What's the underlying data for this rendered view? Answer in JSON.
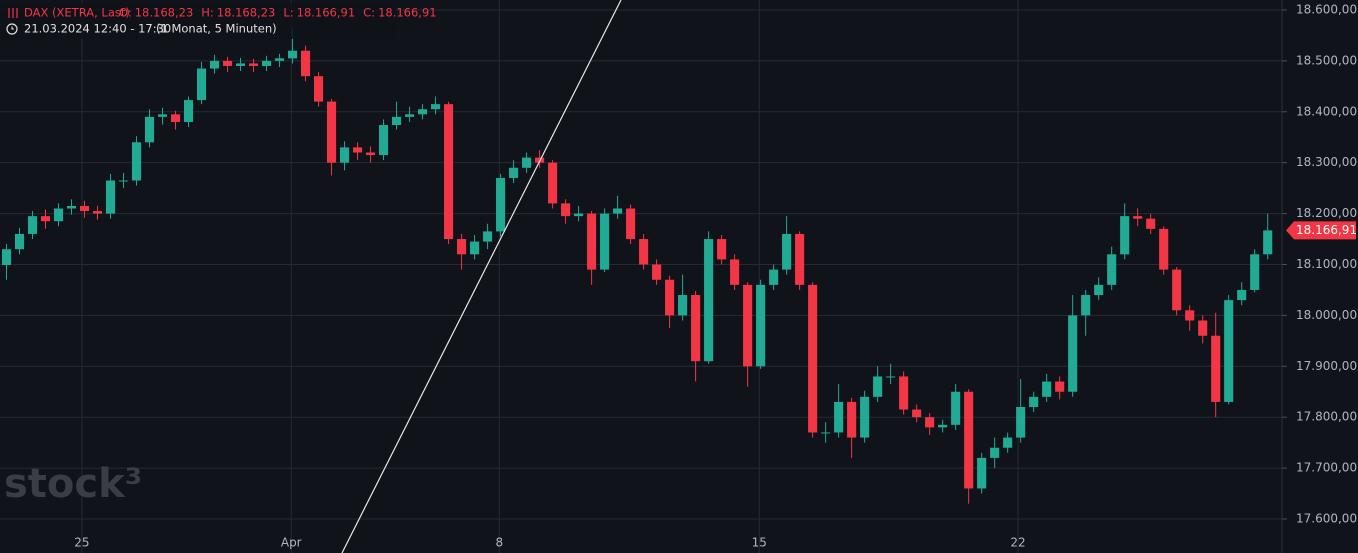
{
  "chart_data": {
    "type": "candlestick",
    "title": "DAX (XETRA, Last)",
    "ohlc_header": [
      {
        "label": "O:",
        "value": "18.168,23"
      },
      {
        "label": "H:",
        "value": "18.168,23"
      },
      {
        "label": "L:",
        "value": "18.166,91"
      },
      {
        "label": "C:",
        "value": "18.166,91"
      }
    ],
    "subtitle": "21.03.2024 12:40 - 17:30",
    "interval": "(1 Monat, 5 Minuten)",
    "watermark": "stock³",
    "up_color": "#22ab94",
    "down_color": "#f23645",
    "grid": true,
    "ylim": [
      17533.2,
      18619.6
    ],
    "xlim": [
      0,
      98.6
    ],
    "yticks": [
      {
        "value": 18600,
        "label": "18.600,00"
      },
      {
        "value": 18500,
        "label": "18.500,00"
      },
      {
        "value": 18400,
        "label": "18.400,00"
      },
      {
        "value": 18300,
        "label": "18.300,00"
      },
      {
        "value": 18200,
        "label": "18.200,00"
      },
      {
        "value": 18100,
        "label": "18.100,00"
      },
      {
        "value": 18000,
        "label": "18.000,00"
      },
      {
        "value": 17900,
        "label": "17.900,00"
      },
      {
        "value": 17800,
        "label": "17.800,00"
      },
      {
        "value": 17700,
        "label": "17.700,00"
      },
      {
        "value": 17600,
        "label": "17.600,00"
      }
    ],
    "xticks": [
      {
        "value": 6.3,
        "label": "25"
      },
      {
        "value": 22.4,
        "label": "Apr"
      },
      {
        "value": 38.4,
        "label": "8"
      },
      {
        "value": 58.4,
        "label": "15"
      },
      {
        "value": 78.3,
        "label": "22"
      }
    ],
    "last_price": {
      "value": 18166.91,
      "label": "18.166,91"
    },
    "series": {
      "open": [
        18099,
        18130,
        18160,
        18195,
        18185,
        18210,
        18215,
        18205,
        18200,
        18265,
        18265,
        18340,
        18390,
        18395,
        18380,
        18423,
        18485,
        18500,
        18490,
        18495,
        18490,
        18500,
        18505,
        18520,
        18470,
        18420,
        18300,
        18330,
        18320,
        18315,
        18374,
        18390,
        18395,
        18405,
        18415,
        18150,
        18120,
        18145,
        18165,
        18270,
        18290,
        18310,
        18300,
        18220,
        18195,
        18200,
        18090,
        18200,
        18210,
        18150,
        18100,
        18070,
        18000,
        18040,
        17910,
        18150,
        18110,
        18060,
        17900,
        18060,
        18090,
        18160,
        18060,
        17770,
        17770,
        17830,
        17760,
        17840,
        17880,
        17880,
        17815,
        17800,
        17780,
        17785,
        17850,
        17660,
        17720,
        17740,
        17760,
        17820,
        17840,
        17870,
        17850,
        18000,
        18040,
        18060,
        18120,
        18195,
        18190,
        18170,
        18090,
        18010,
        17990,
        17960,
        17830,
        18030,
        18050,
        18120
      ],
      "high": [
        18140,
        18172,
        18205,
        18208,
        18220,
        18228,
        18225,
        18215,
        18278,
        18280,
        18352,
        18405,
        18408,
        18402,
        18430,
        18498,
        18512,
        18508,
        18506,
        18504,
        18510,
        18514,
        18565,
        18530,
        18478,
        18425,
        18342,
        18340,
        18332,
        18385,
        18420,
        18410,
        18415,
        18430,
        18420,
        18160,
        18158,
        18180,
        18278,
        18305,
        18320,
        18325,
        18305,
        18228,
        18215,
        18205,
        18210,
        18235,
        18218,
        18160,
        18110,
        18078,
        18080,
        18048,
        18165,
        18158,
        18120,
        18065,
        18070,
        18100,
        18195,
        18165,
        18065,
        17790,
        17865,
        17838,
        17852,
        17900,
        17905,
        17890,
        17825,
        17808,
        17795,
        17865,
        17855,
        17730,
        17760,
        17770,
        17875,
        17850,
        17885,
        17880,
        18040,
        18050,
        18075,
        18135,
        18220,
        18210,
        18200,
        18175,
        18095,
        18020,
        18000,
        18005,
        18040,
        18065,
        18130,
        18200
      ],
      "low": [
        18070,
        18120,
        18150,
        18170,
        18175,
        18198,
        18192,
        18188,
        18190,
        18250,
        18255,
        18330,
        18375,
        18365,
        18370,
        18415,
        18475,
        18478,
        18480,
        18478,
        18480,
        18488,
        18495,
        18460,
        18410,
        18275,
        18285,
        18305,
        18300,
        18305,
        18365,
        18380,
        18385,
        18395,
        18140,
        18090,
        18110,
        18130,
        18155,
        18260,
        18280,
        18290,
        18210,
        18180,
        18185,
        18060,
        18085,
        18190,
        18140,
        18090,
        18060,
        17975,
        17990,
        17870,
        17905,
        18100,
        18050,
        17860,
        17895,
        18050,
        18080,
        18050,
        17760,
        17750,
        17760,
        17720,
        17750,
        17830,
        17865,
        17805,
        17790,
        17765,
        17770,
        17775,
        17630,
        17650,
        17700,
        17730,
        17750,
        17810,
        17830,
        17835,
        17840,
        17960,
        18030,
        18050,
        18110,
        18175,
        18160,
        18080,
        18000,
        17970,
        17945,
        17800,
        17825,
        18020,
        18045,
        18110
      ],
      "close": [
        18130,
        18160,
        18195,
        18185,
        18210,
        18215,
        18205,
        18200,
        18265,
        18265,
        18340,
        18390,
        18395,
        18380,
        18423,
        18485,
        18500,
        18490,
        18495,
        18490,
        18500,
        18505,
        18520,
        18470,
        18420,
        18300,
        18330,
        18320,
        18315,
        18374,
        18390,
        18395,
        18405,
        18415,
        18150,
        18120,
        18145,
        18165,
        18270,
        18290,
        18310,
        18300,
        18220,
        18195,
        18200,
        18090,
        18200,
        18210,
        18150,
        18100,
        18070,
        18000,
        18040,
        17910,
        18150,
        18110,
        18060,
        17900,
        18060,
        18090,
        18160,
        18060,
        17770,
        17770,
        17830,
        17760,
        17840,
        17880,
        17880,
        17815,
        17800,
        17780,
        17785,
        17850,
        17660,
        17720,
        17740,
        17760,
        17820,
        17840,
        17870,
        17850,
        18000,
        18040,
        18060,
        18120,
        18195,
        18190,
        18170,
        18090,
        18010,
        17990,
        17960,
        17830,
        18030,
        18050,
        18120,
        18166.91
      ]
    }
  }
}
